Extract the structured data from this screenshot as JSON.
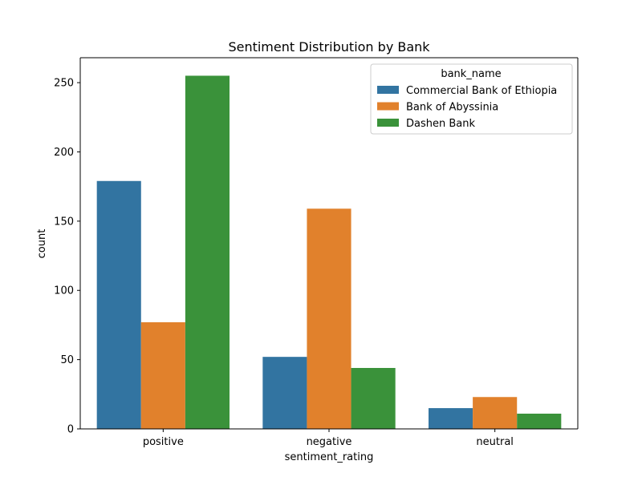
{
  "chart_data": {
    "type": "bar",
    "title": "Sentiment Distribution by Bank",
    "xlabel": "sentiment_rating",
    "ylabel": "count",
    "categories": [
      "positive",
      "negative",
      "neutral"
    ],
    "series": [
      {
        "name": "Commercial Bank of Ethiopia",
        "color": "#3274a1",
        "values": [
          179,
          52,
          15
        ]
      },
      {
        "name": "Bank of Abyssinia",
        "color": "#e1812c",
        "values": [
          77,
          159,
          23
        ]
      },
      {
        "name": "Dashen Bank",
        "color": "#3a923a",
        "values": [
          255,
          44,
          11
        ]
      }
    ],
    "ylim": [
      0,
      268
    ],
    "yticks": [
      0,
      50,
      100,
      150,
      200,
      250
    ],
    "grid": false,
    "legend": {
      "title": "bank_name",
      "placement": "top-right"
    }
  }
}
